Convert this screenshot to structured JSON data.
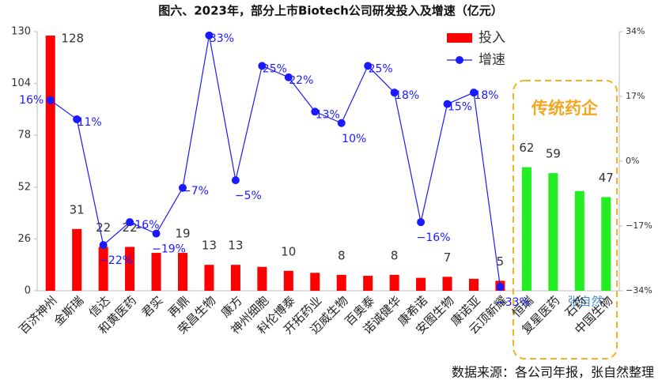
{
  "chart_data": {
    "type": "bar_line",
    "title": "图六、2023年，部分上市Biotech公司研发投入及增速（亿元）",
    "categories": [
      "百济神州",
      "金斯瑞",
      "信达",
      "和黄医药",
      "君实",
      "再鼎",
      "荣昌生物",
      "康方",
      "神州细胞",
      "科伦博泰",
      "开拓药业",
      "迈威生物",
      "百奥泰",
      "诺诚健华",
      "康希诺",
      "安图生物",
      "康诺亚",
      "云顶新耀",
      "恒瑞",
      "复星医药",
      "石药",
      "中国生物"
    ],
    "series": [
      {
        "name": "投入",
        "type": "bar",
        "colors": [
          "#ff0000",
          "#ff0000",
          "#ff0000",
          "#ff0000",
          "#ff0000",
          "#ff0000",
          "#ff0000",
          "#ff0000",
          "#ff0000",
          "#ff0000",
          "#ff0000",
          "#ff0000",
          "#ff0000",
          "#ff0000",
          "#ff0000",
          "#ff0000",
          "#ff0000",
          "#ff0000",
          "#22ee22",
          "#22ee22",
          "#22ee22",
          "#22ee22"
        ],
        "values": [
          128,
          31,
          22,
          22,
          19,
          19,
          13,
          13,
          12,
          10,
          9,
          8,
          7.5,
          8,
          6.5,
          7,
          6,
          5,
          62,
          59,
          50,
          47
        ],
        "value_labels": [
          "128",
          "31",
          "22",
          "22",
          null,
          "19",
          "13",
          "13",
          null,
          "10",
          null,
          "8",
          null,
          "8",
          null,
          "7",
          null,
          "5",
          "62",
          "59",
          null,
          "47"
        ]
      },
      {
        "name": "增速",
        "type": "line",
        "axis": "y2",
        "color": "#1a1aff",
        "values": [
          16,
          11,
          -22,
          -16,
          -19,
          -7,
          33,
          -5,
          25,
          22,
          13,
          10,
          25,
          18,
          -16,
          15,
          18,
          -33,
          null,
          null,
          null,
          null
        ],
        "value_labels": [
          "16%",
          "11%",
          "−22%",
          "−16%",
          "−19%",
          "−7%",
          "33%",
          "−5%",
          "25%",
          "22%",
          "13%",
          "10%",
          "25%",
          "18%",
          "−16%",
          "15%",
          "18%",
          "−33%",
          null,
          null,
          null,
          null
        ]
      }
    ],
    "ylim": [
      0,
      130
    ],
    "yticks": [
      0,
      26,
      52,
      78,
      104,
      130
    ],
    "y2lim": [
      -34,
      34
    ],
    "y2ticks": [
      {
        "value": -34,
        "label": "−34%"
      },
      {
        "value": -17,
        "label": "−17%"
      },
      {
        "value": 0,
        "label": "0%"
      },
      {
        "value": 17,
        "label": "17%"
      },
      {
        "value": 34,
        "label": "34%"
      }
    ],
    "annotations": [
      "传统药企",
      "张自然"
    ],
    "source": "数据来源：各公司年报，张自然整理"
  }
}
